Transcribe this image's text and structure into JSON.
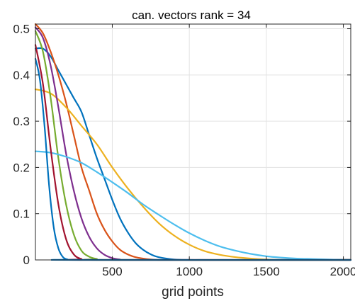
{
  "chart_data": {
    "type": "line",
    "title": "can. vectors  rank = 34",
    "xlabel": "grid points",
    "ylabel": "",
    "xlim": [
      1,
      2048
    ],
    "ylim": [
      0,
      0.51
    ],
    "xticks": [
      500,
      1000,
      1500,
      2000
    ],
    "xtick_labels": [
      "500",
      "1000",
      "1500",
      "2000"
    ],
    "yticks": [
      0,
      0.1,
      0.2,
      0.3,
      0.4,
      0.5
    ],
    "ytick_labels": [
      "0",
      "0.1",
      "0.2",
      "0.3",
      "0.4",
      "0.5"
    ],
    "grid": true,
    "series": [
      {
        "color": "#0072BD",
        "x": [
          1,
          50,
          100,
          150,
          200,
          250,
          300,
          350,
          400,
          450,
          500,
          550,
          600,
          650,
          700,
          750,
          800,
          900,
          1000,
          1100,
          1200,
          2048
        ],
        "y": [
          0.457,
          0.457,
          0.44,
          0.41,
          0.38,
          0.35,
          0.32,
          0.27,
          0.22,
          0.175,
          0.13,
          0.09,
          0.06,
          0.037,
          0.022,
          0.012,
          0.006,
          0.001,
          0.0,
          0.0,
          0.0,
          0.0
        ]
      },
      {
        "color": "#D95319",
        "x": [
          1,
          50,
          100,
          150,
          200,
          250,
          300,
          350,
          400,
          450,
          500,
          550,
          600,
          650,
          700,
          750,
          800,
          900,
          2048
        ],
        "y": [
          0.51,
          0.49,
          0.45,
          0.4,
          0.34,
          0.27,
          0.2,
          0.15,
          0.1,
          0.065,
          0.04,
          0.022,
          0.012,
          0.006,
          0.003,
          0.001,
          0.0,
          0.0,
          0.0
        ]
      },
      {
        "color": "#EDB120",
        "x": [
          1,
          100,
          200,
          300,
          400,
          500,
          600,
          700,
          800,
          900,
          1000,
          1100,
          1200,
          1300,
          1400,
          1500,
          1600,
          1800,
          2048
        ],
        "y": [
          0.369,
          0.36,
          0.33,
          0.29,
          0.25,
          0.2,
          0.155,
          0.115,
          0.08,
          0.053,
          0.033,
          0.019,
          0.011,
          0.006,
          0.003,
          0.001,
          0.0,
          0.0,
          0.0
        ]
      },
      {
        "color": "#7E2F8E",
        "x": [
          1,
          50,
          100,
          150,
          200,
          250,
          300,
          350,
          400,
          450,
          500,
          550,
          600,
          2048
        ],
        "y": [
          0.503,
          0.48,
          0.42,
          0.33,
          0.23,
          0.15,
          0.09,
          0.05,
          0.025,
          0.011,
          0.004,
          0.001,
          0.0,
          0.0
        ]
      },
      {
        "color": "#77AC30",
        "x": [
          1,
          50,
          100,
          150,
          200,
          250,
          300,
          350,
          400,
          450,
          2048
        ],
        "y": [
          0.495,
          0.45,
          0.35,
          0.22,
          0.12,
          0.055,
          0.02,
          0.007,
          0.002,
          0.0,
          0.0
        ]
      },
      {
        "color": "#4DBEEE",
        "x": [
          1,
          100,
          200,
          300,
          400,
          500,
          600,
          700,
          800,
          900,
          1000,
          1100,
          1200,
          1300,
          1400,
          1500,
          1600,
          1700,
          1800,
          1900,
          2000,
          2048
        ],
        "y": [
          0.235,
          0.232,
          0.223,
          0.21,
          0.19,
          0.168,
          0.145,
          0.12,
          0.098,
          0.077,
          0.058,
          0.042,
          0.029,
          0.02,
          0.013,
          0.008,
          0.005,
          0.003,
          0.002,
          0.001,
          0.0,
          0.0
        ]
      },
      {
        "color": "#A2142F",
        "x": [
          1,
          50,
          100,
          150,
          200,
          250,
          300,
          350,
          2048
        ],
        "y": [
          0.465,
          0.38,
          0.24,
          0.12,
          0.045,
          0.012,
          0.002,
          0.0,
          0.0
        ]
      },
      {
        "color": "#0072BD",
        "x": [
          1,
          30,
          60,
          90,
          120,
          150,
          180,
          210,
          250,
          2048
        ],
        "y": [
          0.435,
          0.39,
          0.29,
          0.16,
          0.07,
          0.025,
          0.006,
          0.001,
          0.0,
          0.0
        ]
      }
    ]
  }
}
